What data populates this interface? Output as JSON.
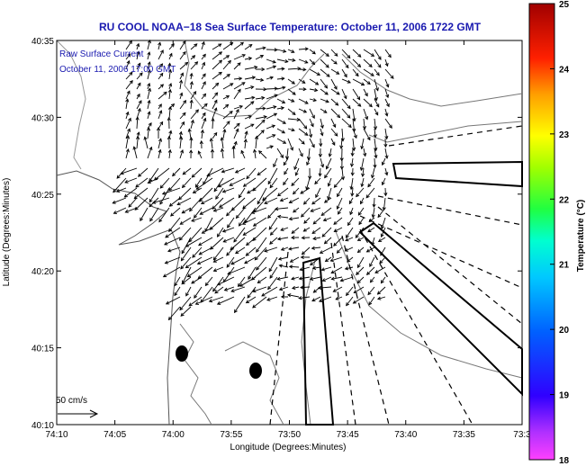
{
  "chart_data": {
    "type": "quiver-map",
    "title": "RU COOL  NOAA−18  Sea Surface Temperature:  October 11, 2006 1722 GMT",
    "annotation_line1": "Raw Surface Current",
    "annotation_line2": "October 11, 2006 17:00 GMT",
    "xlabel": "Longitude (Degrees:Minutes)",
    "ylabel": "Latitude (Degrees:Minutes)",
    "x_ticks": [
      "74:10",
      "74:05",
      "74:00",
      "73:55",
      "73:50",
      "73:45",
      "73:40",
      "73:35",
      "73:3"
    ],
    "y_ticks": [
      "40:35",
      "40:30",
      "40:25",
      "40:20",
      "40:15",
      "40:10"
    ],
    "xlim_minutes_west": [
      4450,
      4410
    ],
    "ylim_minutes_north": [
      2410,
      2435
    ],
    "scale_label": "50 cm/s",
    "colorbar": {
      "label": "Temperature (°C)",
      "min": 18,
      "max": 25,
      "ticks": [
        "25",
        "24",
        "23",
        "22",
        "21",
        "20",
        "19",
        "18"
      ]
    },
    "colors": {
      "title": "#1a1ab0",
      "vectors": "#000000",
      "contours": "#777777"
    }
  }
}
